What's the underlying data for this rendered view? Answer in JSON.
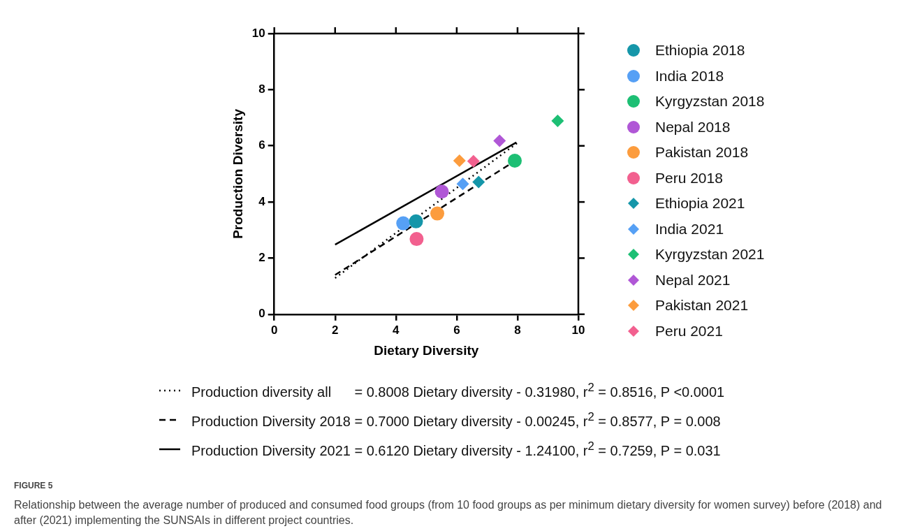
{
  "chart_data": {
    "type": "scatter",
    "xlabel": "Dietary Diversity",
    "ylabel": "Production Diversity",
    "xlim": [
      0,
      10
    ],
    "xticks": [
      0,
      2,
      4,
      6,
      8,
      10
    ],
    "ylim": [
      0,
      10
    ],
    "yticks": [
      0,
      2,
      4,
      6,
      8,
      10
    ],
    "grid": false,
    "legend": "right",
    "series": [
      {
        "name": "Ethiopia 2018",
        "color": "#1596a9",
        "marker": "circle",
        "x": [
          4.66
        ],
        "values": [
          3.31
        ]
      },
      {
        "name": "India 2018",
        "color": "#56a0f5",
        "marker": "circle",
        "x": [
          4.24
        ],
        "values": [
          3.24
        ]
      },
      {
        "name": "Kyrgyzstan 2018",
        "color": "#1dbf74",
        "marker": "circle",
        "x": [
          7.91
        ],
        "values": [
          5.47
        ]
      },
      {
        "name": "Nepal 2018",
        "color": "#b057d6",
        "marker": "circle",
        "x": [
          5.51
        ],
        "values": [
          4.37
        ]
      },
      {
        "name": "Pakistan 2018",
        "color": "#fc9c3d",
        "marker": "circle",
        "x": [
          5.36
        ],
        "values": [
          3.59
        ]
      },
      {
        "name": "Peru 2018",
        "color": "#f2608f",
        "marker": "circle",
        "x": [
          4.68
        ],
        "values": [
          2.68
        ]
      },
      {
        "name": "Ethiopia 2021",
        "color": "#1596a9",
        "marker": "diamond",
        "x": [
          6.72
        ],
        "values": [
          4.71
        ]
      },
      {
        "name": "India 2021",
        "color": "#56a0f5",
        "marker": "diamond",
        "x": [
          6.2
        ],
        "values": [
          4.64
        ]
      },
      {
        "name": "Kyrgyzstan 2021",
        "color": "#1dbf74",
        "marker": "diamond",
        "x": [
          9.32
        ],
        "values": [
          6.89
        ]
      },
      {
        "name": "Nepal 2021",
        "color": "#b057d6",
        "marker": "diamond",
        "x": [
          7.41
        ],
        "values": [
          6.18
        ]
      },
      {
        "name": "Pakistan 2021",
        "color": "#fc9c3d",
        "marker": "diamond",
        "x": [
          6.09
        ],
        "values": [
          5.47
        ]
      },
      {
        "name": "Peru 2021",
        "color": "#f2608f",
        "marker": "diamond",
        "x": [
          6.55
        ],
        "values": [
          5.45
        ]
      },
      {
        "type": "line",
        "name": "Production diversity all      = 0.8008 Dietary diversity - 0.31980, r$^{2}$ = 0.8516, P <0.0001",
        "color": "#000000",
        "line_style": "dotted",
        "marker": "none",
        "x": [
          2,
          7.99
        ],
        "values": [
          1.29,
          6.1
        ]
      },
      {
        "type": "line",
        "name": "Production Diversity 2018 = 0.7000 Dietary diversity - 0.00245, r$^{2}$ = 0.8577, P = 0.008",
        "color": "#000000",
        "line_style": "dashed",
        "marker": "none",
        "x": [
          2,
          7.9
        ],
        "values": [
          1.4,
          5.45
        ]
      },
      {
        "type": "line",
        "name": "Production Diversity 2021 = 0.6120 Dietary diversity - 1.24100, r$^{2}$ = 0.7259, P = 0.031",
        "color": "#000000",
        "line_style": "solid",
        "marker": "none",
        "x": [
          2,
          7.96
        ],
        "values": [
          2.48,
          6.12
        ]
      }
    ],
    "annotations": [
      "FIGURE 5",
      "Relationship between the average number of produced and consumed food groups (from 10 food groups as per minimum dietary diversity for women survey) before (2018) and after (2021) implementing the SUNSAIs in different project countries."
    ]
  }
}
